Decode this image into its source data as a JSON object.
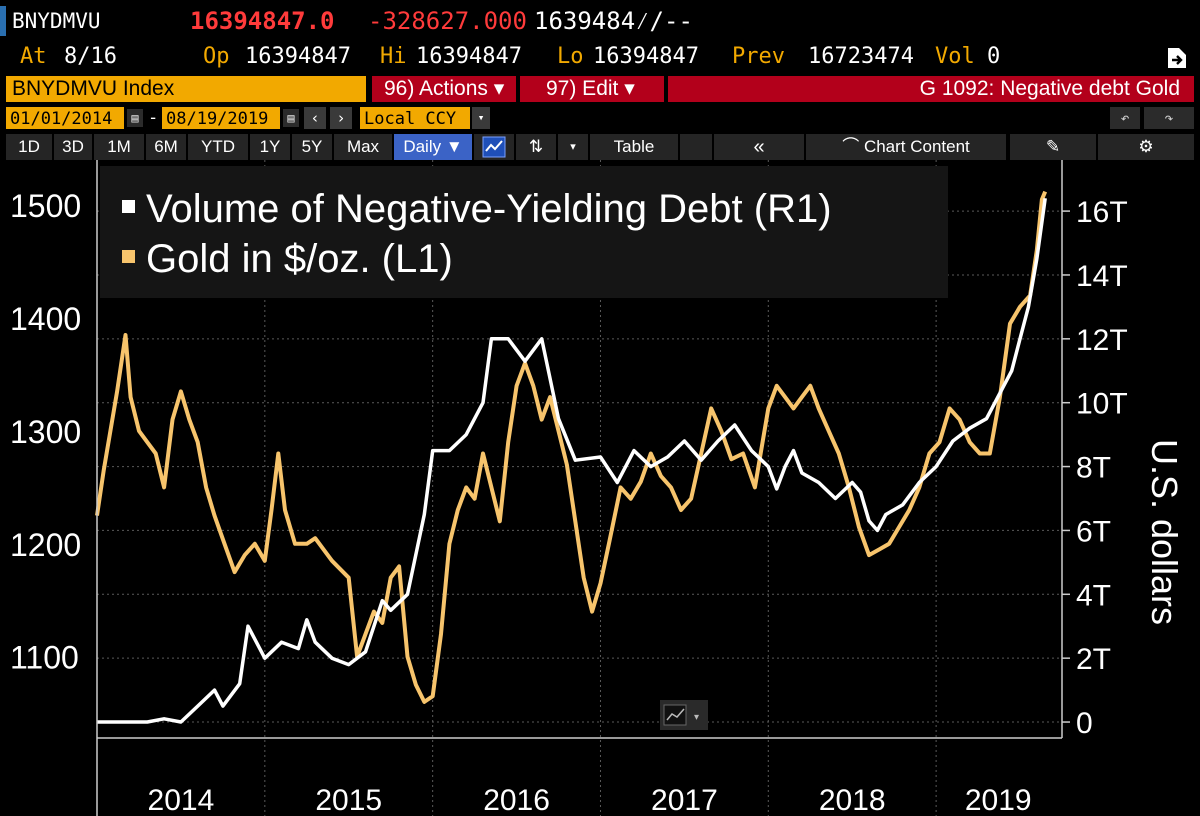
{
  "quote": {
    "symbol": "BNYDMVU",
    "last": "16394847.0",
    "change": "-328627.000",
    "bid_ask": "1639484⁄/--",
    "at_label": "At",
    "at_date": "8/16",
    "op_label": "Op",
    "op_value": "16394847",
    "hi_label": "Hi",
    "hi_value": "16394847",
    "lo_label": "Lo",
    "lo_value": "16394847",
    "prev_label": "Prev",
    "prev_value": "16723474",
    "vol_label": "Vol",
    "vol_value": "0"
  },
  "header": {
    "index_name": "BNYDMVU Index",
    "actions_label": "96) Actions ▾",
    "edit_label": "97) Edit ▾",
    "title_tag": "G 1092: Negative debt Gold"
  },
  "dates": {
    "start": "01/01/2014",
    "end": "08/19/2019",
    "currency": "Local CCY"
  },
  "toolbar": {
    "periods": [
      "1D",
      "3D",
      "1M",
      "6M",
      "YTD",
      "1Y",
      "5Y",
      "Max"
    ],
    "frequency": "Daily ▼",
    "table_label": "Table",
    "collapse_label": "«",
    "chart_content_label": "Chart Content"
  },
  "colors": {
    "gold": "#f7c46c",
    "debt": "#ffffff",
    "accent_orange": "#f2a900",
    "accent_red": "#b3001b",
    "selected_blue": "#3b63c6"
  },
  "icons": [
    "share-icon",
    "calendar-icon",
    "undo-icon",
    "redo-icon",
    "line-chart-icon",
    "candle-icon",
    "edit-icon",
    "gear-icon"
  ],
  "chart_data": {
    "type": "line",
    "legend": [
      {
        "name": "Volume of Negative-Yielding Debt (R1)",
        "color": "#ffffff"
      },
      {
        "name": "Gold in $/oz. (L1)",
        "color": "#f7c46c"
      }
    ],
    "legend_position": "top-left",
    "grid": true,
    "ylabel_right": "U.S. dollars",
    "x_ticks": [
      "2014",
      "2015",
      "2016",
      "2017",
      "2018",
      "2019"
    ],
    "y_left": {
      "ticks": [
        "1100",
        "1200",
        "1300",
        "1400",
        "1500"
      ],
      "lim": [
        1028,
        1540
      ]
    },
    "y_right": {
      "ticks": [
        "0",
        "2T",
        "4T",
        "6T",
        "8T",
        "10T",
        "12T",
        "14T",
        "16T"
      ],
      "lim": [
        -0.5,
        17.6
      ]
    },
    "xlim": [
      2014.0,
      2019.75
    ],
    "series": [
      {
        "name": "Gold in $/oz. (L1)",
        "axis": "left",
        "points": [
          [
            2014.0,
            1225
          ],
          [
            2014.04,
            1265
          ],
          [
            2014.08,
            1300
          ],
          [
            2014.12,
            1335
          ],
          [
            2014.17,
            1385
          ],
          [
            2014.2,
            1330
          ],
          [
            2014.25,
            1300
          ],
          [
            2014.3,
            1290
          ],
          [
            2014.35,
            1280
          ],
          [
            2014.4,
            1250
          ],
          [
            2014.45,
            1310
          ],
          [
            2014.5,
            1335
          ],
          [
            2014.55,
            1310
          ],
          [
            2014.6,
            1290
          ],
          [
            2014.65,
            1250
          ],
          [
            2014.7,
            1225
          ],
          [
            2014.76,
            1200
          ],
          [
            2014.82,
            1175
          ],
          [
            2014.88,
            1190
          ],
          [
            2014.94,
            1200
          ],
          [
            2015.0,
            1185
          ],
          [
            2015.04,
            1230
          ],
          [
            2015.08,
            1280
          ],
          [
            2015.12,
            1230
          ],
          [
            2015.18,
            1200
          ],
          [
            2015.25,
            1200
          ],
          [
            2015.3,
            1205
          ],
          [
            2015.4,
            1185
          ],
          [
            2015.5,
            1170
          ],
          [
            2015.55,
            1100
          ],
          [
            2015.6,
            1120
          ],
          [
            2015.65,
            1140
          ],
          [
            2015.7,
            1130
          ],
          [
            2015.75,
            1170
          ],
          [
            2015.8,
            1180
          ],
          [
            2015.85,
            1100
          ],
          [
            2015.9,
            1075
          ],
          [
            2015.95,
            1060
          ],
          [
            2016.0,
            1065
          ],
          [
            2016.05,
            1120
          ],
          [
            2016.1,
            1200
          ],
          [
            2016.15,
            1230
          ],
          [
            2016.2,
            1250
          ],
          [
            2016.25,
            1240
          ],
          [
            2016.3,
            1280
          ],
          [
            2016.35,
            1250
          ],
          [
            2016.4,
            1220
          ],
          [
            2016.45,
            1290
          ],
          [
            2016.5,
            1340
          ],
          [
            2016.55,
            1360
          ],
          [
            2016.6,
            1340
          ],
          [
            2016.65,
            1310
          ],
          [
            2016.7,
            1330
          ],
          [
            2016.75,
            1300
          ],
          [
            2016.8,
            1270
          ],
          [
            2016.85,
            1220
          ],
          [
            2016.9,
            1170
          ],
          [
            2016.95,
            1140
          ],
          [
            2017.0,
            1165
          ],
          [
            2017.05,
            1200
          ],
          [
            2017.12,
            1250
          ],
          [
            2017.18,
            1240
          ],
          [
            2017.24,
            1255
          ],
          [
            2017.3,
            1280
          ],
          [
            2017.36,
            1260
          ],
          [
            2017.42,
            1250
          ],
          [
            2017.48,
            1230
          ],
          [
            2017.54,
            1240
          ],
          [
            2017.6,
            1280
          ],
          [
            2017.66,
            1320
          ],
          [
            2017.72,
            1300
          ],
          [
            2017.78,
            1275
          ],
          [
            2017.85,
            1280
          ],
          [
            2017.92,
            1250
          ],
          [
            2018.0,
            1320
          ],
          [
            2018.05,
            1340
          ],
          [
            2018.1,
            1330
          ],
          [
            2018.15,
            1320
          ],
          [
            2018.2,
            1330
          ],
          [
            2018.25,
            1340
          ],
          [
            2018.3,
            1320
          ],
          [
            2018.36,
            1300
          ],
          [
            2018.42,
            1280
          ],
          [
            2018.48,
            1250
          ],
          [
            2018.54,
            1215
          ],
          [
            2018.6,
            1190
          ],
          [
            2018.66,
            1195
          ],
          [
            2018.72,
            1200
          ],
          [
            2018.78,
            1215
          ],
          [
            2018.84,
            1230
          ],
          [
            2018.9,
            1250
          ],
          [
            2018.96,
            1280
          ],
          [
            2019.02,
            1290
          ],
          [
            2019.08,
            1320
          ],
          [
            2019.14,
            1310
          ],
          [
            2019.2,
            1290
          ],
          [
            2019.26,
            1280
          ],
          [
            2019.32,
            1280
          ],
          [
            2019.38,
            1330
          ],
          [
            2019.44,
            1395
          ],
          [
            2019.5,
            1410
          ],
          [
            2019.56,
            1420
          ],
          [
            2019.6,
            1460
          ],
          [
            2019.63,
            1505
          ],
          [
            2019.65,
            1512
          ]
        ]
      },
      {
        "name": "Volume of Negative-Yielding Debt (R1)",
        "axis": "right",
        "points": [
          [
            2014.0,
            0.0
          ],
          [
            2014.1,
            0.0
          ],
          [
            2014.2,
            0.0
          ],
          [
            2014.3,
            0.0
          ],
          [
            2014.4,
            0.1
          ],
          [
            2014.5,
            0.0
          ],
          [
            2014.6,
            0.5
          ],
          [
            2014.7,
            1.0
          ],
          [
            2014.75,
            0.5
          ],
          [
            2014.85,
            1.2
          ],
          [
            2014.9,
            3.0
          ],
          [
            2015.0,
            2.0
          ],
          [
            2015.1,
            2.5
          ],
          [
            2015.2,
            2.3
          ],
          [
            2015.25,
            3.2
          ],
          [
            2015.3,
            2.5
          ],
          [
            2015.4,
            2.0
          ],
          [
            2015.5,
            1.8
          ],
          [
            2015.6,
            2.2
          ],
          [
            2015.7,
            3.8
          ],
          [
            2015.75,
            3.5
          ],
          [
            2015.85,
            4.0
          ],
          [
            2015.95,
            6.5
          ],
          [
            2016.0,
            8.5
          ],
          [
            2016.1,
            8.5
          ],
          [
            2016.2,
            9.0
          ],
          [
            2016.3,
            10.0
          ],
          [
            2016.35,
            12.0
          ],
          [
            2016.45,
            12.0
          ],
          [
            2016.55,
            11.3
          ],
          [
            2016.65,
            12.0
          ],
          [
            2016.75,
            9.5
          ],
          [
            2016.85,
            8.2
          ],
          [
            2017.0,
            8.3
          ],
          [
            2017.1,
            7.5
          ],
          [
            2017.2,
            8.5
          ],
          [
            2017.3,
            8.0
          ],
          [
            2017.4,
            8.3
          ],
          [
            2017.5,
            8.8
          ],
          [
            2017.6,
            8.2
          ],
          [
            2017.7,
            8.8
          ],
          [
            2017.8,
            9.3
          ],
          [
            2017.9,
            8.5
          ],
          [
            2018.0,
            8.0
          ],
          [
            2018.05,
            7.3
          ],
          [
            2018.1,
            8.0
          ],
          [
            2018.15,
            8.5
          ],
          [
            2018.2,
            7.8
          ],
          [
            2018.3,
            7.5
          ],
          [
            2018.4,
            7.0
          ],
          [
            2018.5,
            7.5
          ],
          [
            2018.55,
            7.2
          ],
          [
            2018.6,
            6.3
          ],
          [
            2018.65,
            6.0
          ],
          [
            2018.7,
            6.5
          ],
          [
            2018.8,
            6.8
          ],
          [
            2018.9,
            7.5
          ],
          [
            2019.0,
            8.0
          ],
          [
            2019.1,
            8.8
          ],
          [
            2019.2,
            9.2
          ],
          [
            2019.3,
            9.5
          ],
          [
            2019.4,
            10.5
          ],
          [
            2019.45,
            11.0
          ],
          [
            2019.5,
            12.0
          ],
          [
            2019.55,
            13.0
          ],
          [
            2019.6,
            14.5
          ],
          [
            2019.65,
            16.4
          ]
        ]
      }
    ]
  }
}
